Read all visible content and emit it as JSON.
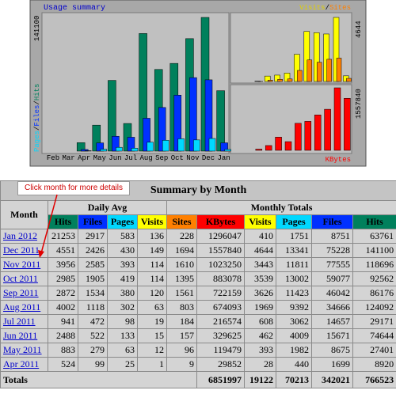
{
  "chart": {
    "title": "Usage summary",
    "months": [
      "Feb",
      "Mar",
      "Apr",
      "May",
      "Jun",
      "Jul",
      "Aug",
      "Sep",
      "Oct",
      "Nov",
      "Dec",
      "Jan"
    ],
    "hits_max": 141100,
    "visits_max": 4644,
    "kbytes_max": 1557840,
    "legend_left": [
      "Pages",
      "Files",
      "Hits"
    ],
    "legend_right": [
      "Visits",
      "Sites"
    ],
    "kbytes_label": "KBytes",
    "separator": "/"
  },
  "callout": "Click month for more details",
  "table": {
    "title": "Summary by Month",
    "month_header": "Month",
    "daily_avg": "Daily Avg",
    "monthly_totals": "Monthly Totals",
    "columns": [
      "Hits",
      "Files",
      "Pages",
      "Visits",
      "Sites",
      "KBytes",
      "Visits",
      "Pages",
      "Files",
      "Hits"
    ],
    "rows": [
      {
        "month": "Jan 2012",
        "values": [
          21253,
          2917,
          583,
          136,
          228,
          1296047,
          410,
          1751,
          8751,
          63761
        ]
      },
      {
        "month": "Dec 2011",
        "values": [
          4551,
          2426,
          430,
          149,
          1694,
          1557840,
          4644,
          13341,
          75228,
          141100
        ]
      },
      {
        "month": "Nov 2011",
        "values": [
          3956,
          2585,
          393,
          114,
          1610,
          1023250,
          3443,
          11811,
          77555,
          118696
        ]
      },
      {
        "month": "Oct 2011",
        "values": [
          2985,
          1905,
          419,
          114,
          1395,
          883078,
          3539,
          13002,
          59077,
          92562
        ]
      },
      {
        "month": "Sep 2011",
        "values": [
          2872,
          1534,
          380,
          120,
          1561,
          722159,
          3626,
          11423,
          46042,
          86176
        ]
      },
      {
        "month": "Aug 2011",
        "values": [
          4002,
          1118,
          302,
          63,
          803,
          674093,
          1969,
          9392,
          34666,
          124092
        ]
      },
      {
        "month": "Jul 2011",
        "values": [
          941,
          472,
          98,
          19,
          184,
          216574,
          608,
          3062,
          14657,
          29171
        ]
      },
      {
        "month": "Jun 2011",
        "values": [
          2488,
          522,
          133,
          15,
          157,
          329625,
          462,
          4009,
          15671,
          74644
        ]
      },
      {
        "month": "May 2011",
        "values": [
          883,
          279,
          63,
          12,
          96,
          119479,
          393,
          1982,
          8675,
          27401
        ]
      },
      {
        "month": "Apr 2011",
        "values": [
          524,
          99,
          25,
          1,
          9,
          29852,
          28,
          440,
          1699,
          8920
        ]
      }
    ],
    "totals": {
      "label": "Totals",
      "values": [
        6851997,
        19122,
        70213,
        342021,
        766523
      ]
    }
  }
}
